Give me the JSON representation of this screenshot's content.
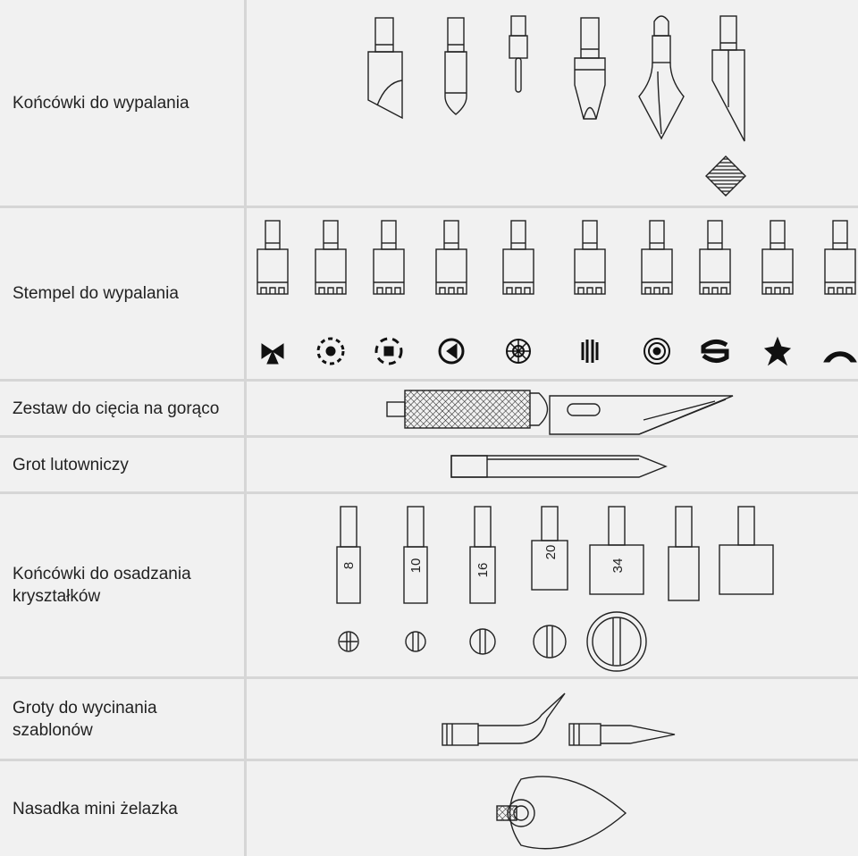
{
  "rows": [
    {
      "label": "Końcówki do wypalania"
    },
    {
      "label": "Stempel do wypalania"
    },
    {
      "label": "Zestaw do cięcia na gorąco"
    },
    {
      "label": "Grot lutowniczy"
    },
    {
      "label": "Końcówki do osadzania\nkryształków",
      "sizes": [
        "8",
        "10",
        "16",
        "20",
        "34"
      ]
    },
    {
      "label": "Groty do wycinania\nszablonów"
    },
    {
      "label": "Nasadka mini żelazka"
    }
  ]
}
